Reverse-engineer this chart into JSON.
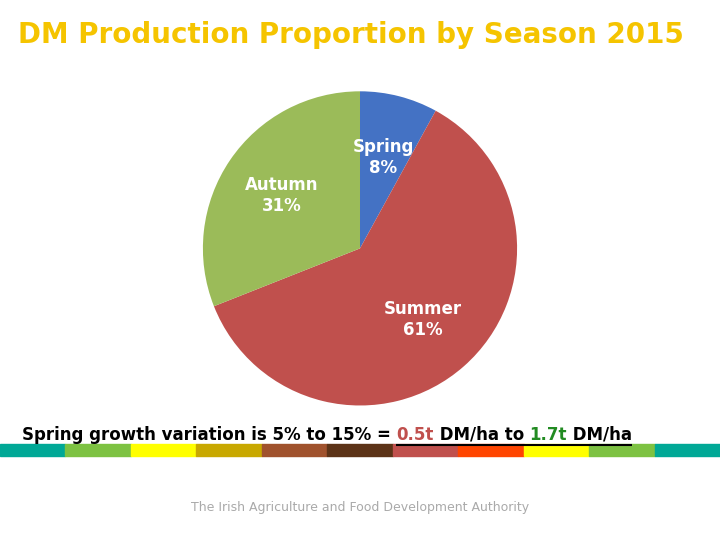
{
  "title": "DM Production Proportion by Season 2015",
  "title_bg_color": "#00A896",
  "title_text_color": "#F5C400",
  "slices": [
    8,
    61,
    31
  ],
  "labels": [
    "Spring",
    "Summer",
    "Autumn"
  ],
  "colors": [
    "#4472C4",
    "#C0504D",
    "#9BBB59"
  ],
  "label_colors": [
    "white",
    "white",
    "white"
  ],
  "startangle": 90,
  "annotation_plain": "Spring growth variation is 5% to 15% = ",
  "annotation_05t": "0.5t",
  "annotation_mid": " DM/ha to ",
  "annotation_17t": "1.7t",
  "annotation_end": " DM/ha",
  "color_05t": "#C0504D",
  "color_17t": "#228B22",
  "bg_color": "#FFFFFF",
  "footer_text": "The Irish Agriculture and Food Development Authority",
  "footer_color": "#AAAAAA",
  "footer_fontsize": 9,
  "ann_fontsize": 12,
  "title_fontsize": 20,
  "pie_label_fontsize": 12,
  "bar_colors": [
    "#00A896",
    "#7DC242",
    "#FFFF00",
    "#C8A800",
    "#A0522D",
    "#5C3317",
    "#C0504D",
    "#FF4500",
    "#FFFF00",
    "#7DC242",
    "#00A896"
  ]
}
